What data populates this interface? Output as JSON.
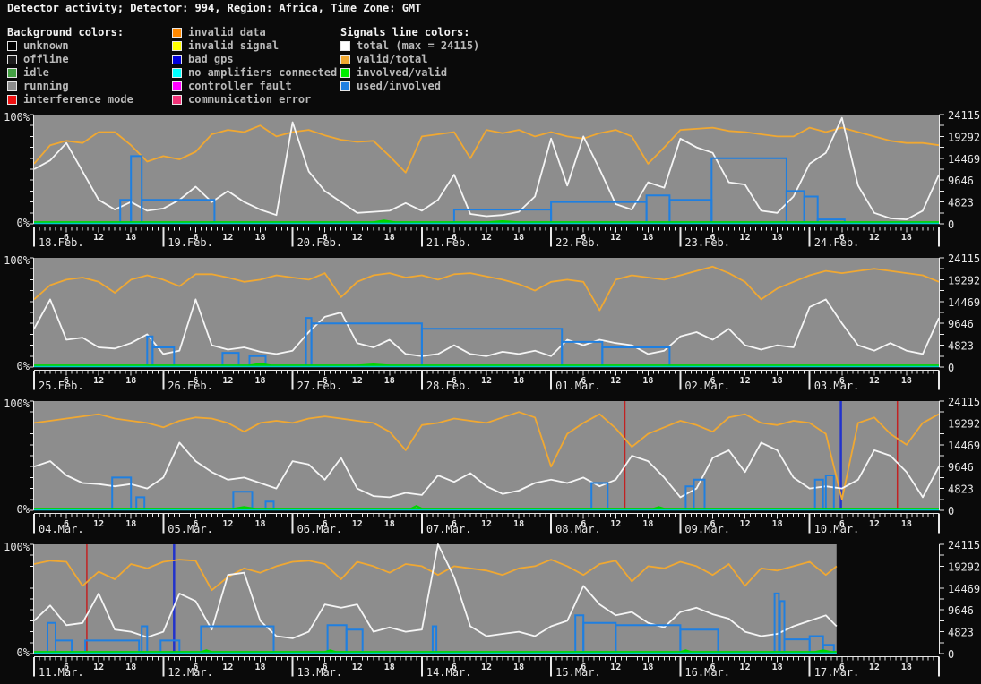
{
  "title": "Detector activity; Detector: 994, Region: Africa, Time Zone: GMT",
  "legend": {
    "background": {
      "header": "Background colors:",
      "items": [
        {
          "label": "unknown",
          "color": "#000000"
        },
        {
          "label": "offline",
          "color": "#1c1c1c"
        },
        {
          "label": "idle",
          "color": "#44a044"
        },
        {
          "label": "running",
          "color": "#8d8d8d"
        },
        {
          "label": "interference mode",
          "color": "#ee1111"
        }
      ]
    },
    "background_events": {
      "items": [
        {
          "label": "invalid data",
          "color": "#ff8800"
        },
        {
          "label": "invalid signal",
          "color": "#ffff00"
        },
        {
          "label": "bad gps",
          "color": "#0000dd"
        },
        {
          "label": "no amplifiers connected",
          "color": "#00ffff"
        },
        {
          "label": "controller fault",
          "color": "#ff00ff"
        },
        {
          "label": "communication error",
          "color": "#f23378"
        }
      ]
    },
    "signals": {
      "header": "Signals line colors:",
      "items": [
        {
          "label": "total (max = 24115)",
          "color": "#ffffff"
        },
        {
          "label": "valid/total",
          "color": "#f0a832"
        },
        {
          "label": "involved/valid",
          "color": "#00ee00"
        },
        {
          "label": "used/involved",
          "color": "#1f7fe0"
        }
      ]
    }
  },
  "chart_palette": {
    "plot_bg": "#8d8d8d",
    "axis": "#e8e8e8",
    "total": "#f5f5f5",
    "valid_total": "#f0a832",
    "involved_valid": "#00d400",
    "used_involved": "#1f7fe0",
    "cyan_baseline": "#00cccc",
    "interference": "#c22222",
    "bad_gps": "#2233cc"
  },
  "axes": {
    "y_left_labels": [
      "100%",
      "0%"
    ],
    "y_right_labels": [
      "24115",
      "19292",
      "14469",
      "9646",
      "4823",
      "0"
    ],
    "y_right_max": 24115,
    "hour_labels": [
      "6",
      "12",
      "18"
    ]
  },
  "chart_data": [
    {
      "type": "line",
      "y_unit": "percent",
      "sample_step_hours": 3,
      "end_hour": 168,
      "dates": [
        "18.Feb.",
        "19.Feb.",
        "20.Feb.",
        "21.Feb.",
        "22.Feb.",
        "23.Feb.",
        "24.Feb."
      ],
      "series": {
        "total": {
          "values": [
            50,
            58,
            74,
            48,
            22,
            13,
            20,
            12,
            14,
            22,
            34,
            20,
            30,
            20,
            13,
            8,
            93,
            48,
            30,
            20,
            10,
            11,
            12,
            19,
            12,
            22,
            45,
            9,
            7,
            8,
            11,
            25,
            78,
            35,
            80,
            50,
            18,
            13,
            38,
            33,
            78,
            70,
            65,
            38,
            36,
            12,
            10,
            25,
            55,
            65,
            97,
            35,
            10,
            5,
            4,
            12,
            45
          ]
        },
        "valid_total": {
          "values": [
            55,
            72,
            76,
            74,
            84,
            84,
            72,
            57,
            62,
            59,
            66,
            82,
            86,
            84,
            90,
            80,
            84,
            86,
            81,
            77,
            75,
            76,
            62,
            47,
            80,
            82,
            84,
            60,
            86,
            83,
            86,
            80,
            84,
            80,
            78,
            83,
            86,
            80,
            55,
            70,
            86,
            87,
            88,
            85,
            84,
            82,
            80,
            80,
            88,
            84,
            88,
            84,
            80,
            76,
            74,
            74,
            72
          ]
        },
        "involved_valid": {
          "base_pct": 1.5,
          "bumps": [
            [
              63,
              67,
              3
            ],
            [
              84,
              90,
              2.5
            ]
          ]
        },
        "used_involved": {
          "segments": [
            [
              16,
              18,
              22
            ],
            [
              18,
              20,
              62
            ],
            [
              20,
              33.5,
              22
            ],
            [
              78,
              96,
              13
            ],
            [
              96,
              113.7,
              20
            ],
            [
              113.7,
              118,
              26
            ],
            [
              118,
              125.8,
              22
            ],
            [
              125.8,
              139.7,
              60
            ],
            [
              139.7,
              143,
              30
            ],
            [
              143,
              145.5,
              25
            ],
            [
              145.5,
              150.5,
              4
            ]
          ]
        }
      },
      "events": []
    },
    {
      "type": "line",
      "y_unit": "percent",
      "sample_step_hours": 3,
      "end_hour": 168,
      "dates": [
        "25.Feb.",
        "26.Feb.",
        "27.Feb.",
        "28.Feb.",
        "01.Mar.",
        "02.Mar.",
        "03.Mar."
      ],
      "series": {
        "total": {
          "values": [
            35,
            62,
            25,
            27,
            18,
            17,
            22,
            30,
            12,
            15,
            62,
            20,
            16,
            18,
            14,
            12,
            15,
            32,
            46,
            50,
            22,
            18,
            25,
            12,
            10,
            12,
            20,
            12,
            10,
            14,
            12,
            15,
            10,
            25,
            20,
            25,
            22,
            20,
            12,
            15,
            28,
            32,
            25,
            35,
            20,
            16,
            20,
            18,
            55,
            62,
            40,
            20,
            15,
            22,
            15,
            12,
            45
          ]
        },
        "valid_total": {
          "values": [
            62,
            75,
            80,
            82,
            78,
            68,
            80,
            84,
            80,
            74,
            85,
            85,
            82,
            78,
            80,
            84,
            82,
            80,
            86,
            64,
            78,
            84,
            86,
            82,
            84,
            80,
            85,
            86,
            83,
            80,
            76,
            70,
            78,
            80,
            78,
            52,
            80,
            84,
            82,
            80,
            84,
            88,
            92,
            86,
            78,
            62,
            72,
            78,
            84,
            88,
            86,
            88,
            90,
            88,
            86,
            84,
            78
          ]
        },
        "involved_valid": {
          "base_pct": 1.5,
          "bumps": [
            [
              40,
              44,
              3
            ],
            [
              60,
              66,
              2.5
            ]
          ]
        },
        "used_involved": {
          "segments": [
            [
              21,
              22,
              28
            ],
            [
              22,
              26,
              18
            ],
            [
              35,
              38,
              13
            ],
            [
              40,
              43,
              10
            ],
            [
              50.5,
              51.5,
              45
            ],
            [
              51.5,
              72,
              40
            ],
            [
              72,
              98,
              35
            ],
            [
              98,
              105.5,
              23
            ],
            [
              105.5,
              118,
              18
            ]
          ]
        }
      },
      "events": []
    },
    {
      "type": "line",
      "y_unit": "percent",
      "sample_step_hours": 3,
      "end_hour": 168,
      "dates": [
        "04.Mar.",
        "05.Mar.",
        "06.Mar.",
        "07.Mar.",
        "08.Mar.",
        "09.Mar.",
        "10.Mar."
      ],
      "series": {
        "total": {
          "values": [
            40,
            45,
            32,
            25,
            24,
            22,
            24,
            20,
            30,
            62,
            45,
            35,
            28,
            30,
            25,
            20,
            45,
            42,
            28,
            48,
            20,
            13,
            12,
            16,
            14,
            32,
            26,
            34,
            22,
            15,
            18,
            25,
            28,
            25,
            30,
            22,
            28,
            50,
            45,
            30,
            12,
            20,
            48,
            55,
            35,
            62,
            55,
            30,
            20,
            22,
            20,
            28,
            55,
            50,
            35,
            12,
            40
          ]
        },
        "valid_total": {
          "values": [
            80,
            82,
            84,
            86,
            88,
            84,
            82,
            80,
            76,
            82,
            85,
            84,
            80,
            72,
            80,
            82,
            80,
            84,
            86,
            84,
            82,
            80,
            72,
            55,
            78,
            80,
            84,
            82,
            80,
            85,
            90,
            85,
            40,
            70,
            80,
            88,
            75,
            58,
            70,
            76,
            82,
            78,
            72,
            85,
            88,
            80,
            78,
            82,
            80,
            70,
            10,
            80,
            85,
            70,
            60,
            80,
            88
          ]
        },
        "involved_valid": {
          "base_pct": 1.5,
          "bumps": [
            [
              37,
              41,
              3
            ],
            [
              70,
              72,
              4
            ],
            [
              115,
              117,
              3
            ]
          ]
        },
        "used_involved": {
          "segments": [
            [
              14.5,
              18,
              30
            ],
            [
              19,
              20.5,
              12
            ],
            [
              37,
              40.5,
              17
            ],
            [
              43,
              44.5,
              8
            ],
            [
              103.5,
              106.5,
              25
            ],
            [
              121,
              122.5,
              22
            ],
            [
              122.5,
              124.5,
              28
            ],
            [
              145,
              146.5,
              28
            ],
            [
              147,
              148.5,
              32
            ]
          ]
        }
      },
      "events": [
        {
          "type": "interference mode",
          "hour": 109.7
        },
        {
          "type": "bad gps",
          "hour": 149.8
        },
        {
          "type": "interference mode",
          "hour": 160.3
        }
      ]
    },
    {
      "type": "line",
      "y_unit": "percent",
      "sample_step_hours": 3,
      "end_hour": 149,
      "dates": [
        "11.Mar.",
        "12.Mar.",
        "13.Mar.",
        "14.Mar.",
        "15.Mar.",
        "16.Mar.",
        "17.Mar."
      ],
      "series": {
        "total": {
          "values": [
            30,
            44,
            26,
            28,
            55,
            22,
            20,
            15,
            20,
            55,
            48,
            22,
            72,
            74,
            30,
            16,
            14,
            20,
            45,
            42,
            45,
            20,
            24,
            20,
            22,
            100,
            70,
            25,
            16,
            18,
            20,
            16,
            25,
            30,
            62,
            45,
            35,
            38,
            28,
            24,
            38,
            42,
            36,
            32,
            20,
            16,
            18,
            25,
            30,
            35,
            25
          ]
        },
        "valid_total": {
          "values": [
            82,
            85,
            84,
            62,
            75,
            68,
            82,
            78,
            84,
            86,
            85,
            58,
            70,
            78,
            74,
            80,
            84,
            85,
            82,
            68,
            84,
            80,
            74,
            82,
            80,
            72,
            80,
            78,
            76,
            72,
            78,
            80,
            86,
            80,
            72,
            82,
            85,
            66,
            80,
            78,
            84,
            80,
            72,
            82,
            62,
            78,
            76,
            80,
            84,
            72,
            80
          ]
        },
        "involved_valid": {
          "base_pct": 1.5,
          "bumps": [
            [
              31,
              33,
              3
            ],
            [
              54,
              56,
              3
            ],
            [
              120,
              122,
              3
            ],
            [
              145,
              148,
              3
            ]
          ]
        },
        "used_involved": {
          "segments": [
            [
              2.5,
              4,
              28
            ],
            [
              4,
              7,
              12
            ],
            [
              9.5,
              19.5,
              12
            ],
            [
              20,
              21,
              25
            ],
            [
              23.5,
              27,
              12
            ],
            [
              31,
              44.5,
              25
            ],
            [
              54.5,
              58,
              26
            ],
            [
              58,
              61,
              22
            ],
            [
              74,
              74.7,
              25
            ],
            [
              100.5,
              102,
              35
            ],
            [
              102,
              108,
              28
            ],
            [
              108,
              120,
              26
            ],
            [
              120,
              127,
              22
            ],
            [
              137.5,
              138.3,
              55
            ],
            [
              138.5,
              139.3,
              48
            ],
            [
              139.3,
              144,
              13
            ],
            [
              144,
              146.5,
              16
            ],
            [
              146.5,
              148.5,
              8
            ]
          ]
        }
      },
      "events": [
        {
          "type": "interference mode",
          "hour": 9.8
        },
        {
          "type": "bad gps",
          "hour": 26
        }
      ]
    }
  ]
}
